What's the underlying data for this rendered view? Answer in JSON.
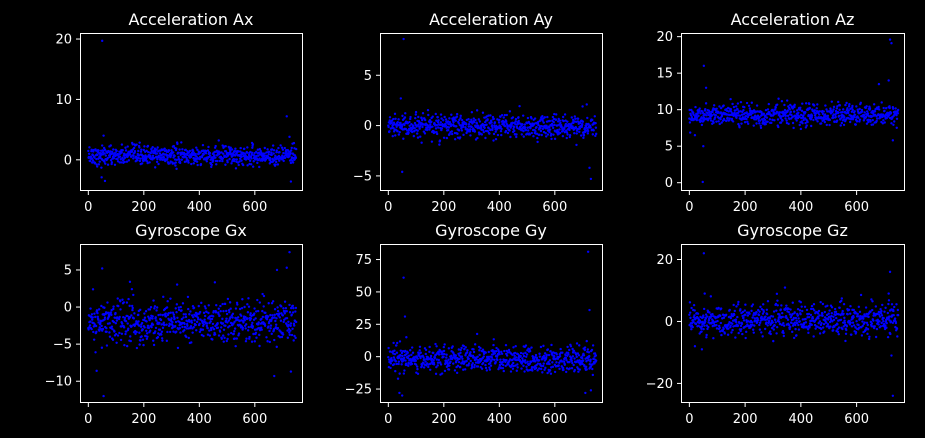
{
  "theme": {
    "background": "#000000",
    "axis_color": "#ffffff",
    "marker_color": "#0000ff"
  },
  "chart_data": [
    {
      "type": "scatter",
      "title": "Acceleration Ax",
      "xlabel": "",
      "ylabel": "",
      "xlim": [
        -30,
        770
      ],
      "ylim": [
        -5,
        21
      ],
      "xticks": [
        0,
        200,
        400,
        600
      ],
      "yticks": [
        0,
        10,
        20
      ],
      "n_points": 750,
      "center": 0.7,
      "spread": 0.8,
      "outliers": [
        [
          50,
          19.7
        ],
        [
          55,
          4.0
        ],
        [
          60,
          -3.5
        ],
        [
          48,
          -2.9
        ],
        [
          715,
          7.2
        ],
        [
          725,
          3.8
        ],
        [
          730,
          -3.6
        ],
        [
          470,
          3.2
        ],
        [
          590,
          2.8
        ]
      ]
    },
    {
      "type": "scatter",
      "title": "Acceleration Ay",
      "xlabel": "",
      "ylabel": "",
      "xlim": [
        -30,
        770
      ],
      "ylim": [
        -6.4,
        9.2
      ],
      "xticks": [
        0,
        200,
        400,
        600
      ],
      "yticks": [
        -5,
        0,
        5
      ],
      "n_points": 750,
      "center": -0.1,
      "spread": 0.55,
      "outliers": [
        [
          55,
          8.6
        ],
        [
          50,
          -4.6
        ],
        [
          45,
          2.7
        ],
        [
          715,
          2.1
        ],
        [
          725,
          -4.2
        ],
        [
          730,
          -5.3
        ],
        [
          120,
          -1.7
        ],
        [
          700,
          1.9
        ]
      ]
    },
    {
      "type": "scatter",
      "title": "Acceleration Az",
      "xlabel": "",
      "ylabel": "",
      "xlim": [
        -30,
        770
      ],
      "ylim": [
        -1,
        20.5
      ],
      "xticks": [
        0,
        200,
        400,
        600
      ],
      "yticks": [
        0,
        5,
        10,
        15,
        20
      ],
      "n_points": 750,
      "center": 9.3,
      "spread": 0.7,
      "outliers": [
        [
          48,
          0.1
        ],
        [
          52,
          16.0
        ],
        [
          50,
          5.0
        ],
        [
          60,
          13.0
        ],
        [
          720,
          19.6
        ],
        [
          725,
          19.1
        ],
        [
          715,
          14.0
        ],
        [
          730,
          5.8
        ],
        [
          20,
          6.5
        ],
        [
          680,
          13.5
        ]
      ]
    },
    {
      "type": "scatter",
      "title": "Gyroscope Gx",
      "xlabel": "",
      "ylabel": "",
      "xlim": [
        -30,
        770
      ],
      "ylim": [
        -12.8,
        8.5
      ],
      "xticks": [
        0,
        200,
        400,
        600
      ],
      "yticks": [
        -10,
        -5,
        0,
        5
      ],
      "n_points": 750,
      "center": -2.0,
      "spread": 1.5,
      "outliers": [
        [
          55,
          -12.0
        ],
        [
          50,
          5.2
        ],
        [
          30,
          -8.6
        ],
        [
          725,
          7.4
        ],
        [
          715,
          5.3
        ],
        [
          730,
          -8.7
        ],
        [
          670,
          -9.3
        ],
        [
          680,
          5.0
        ],
        [
          150,
          3.4
        ]
      ]
    },
    {
      "type": "scatter",
      "title": "Gyroscope Gy",
      "xlabel": "",
      "ylabel": "",
      "xlim": [
        -30,
        770
      ],
      "ylim": [
        -35,
        87
      ],
      "xticks": [
        0,
        200,
        400,
        600
      ],
      "yticks": [
        -25,
        0,
        25,
        50,
        75
      ],
      "n_points": 750,
      "center": -2.0,
      "spread": 5.0,
      "outliers": [
        [
          55,
          61
        ],
        [
          60,
          31
        ],
        [
          65,
          15
        ],
        [
          40,
          -28
        ],
        [
          50,
          -30
        ],
        [
          720,
          81
        ],
        [
          725,
          36
        ],
        [
          715,
          12
        ],
        [
          730,
          -26
        ],
        [
          710,
          -28
        ],
        [
          35,
          -17
        ]
      ]
    },
    {
      "type": "scatter",
      "title": "Gyroscope Gz",
      "xlabel": "",
      "ylabel": "",
      "xlim": [
        -30,
        770
      ],
      "ylim": [
        -26,
        25
      ],
      "xticks": [
        0,
        200,
        400,
        600
      ],
      "yticks": [
        -20,
        0,
        20
      ],
      "n_points": 750,
      "center": 0.5,
      "spread": 2.6,
      "outliers": [
        [
          52,
          22
        ],
        [
          55,
          9
        ],
        [
          45,
          -9
        ],
        [
          720,
          16
        ],
        [
          725,
          -11
        ],
        [
          730,
          -24
        ],
        [
          715,
          9
        ],
        [
          20,
          -8
        ]
      ]
    }
  ]
}
